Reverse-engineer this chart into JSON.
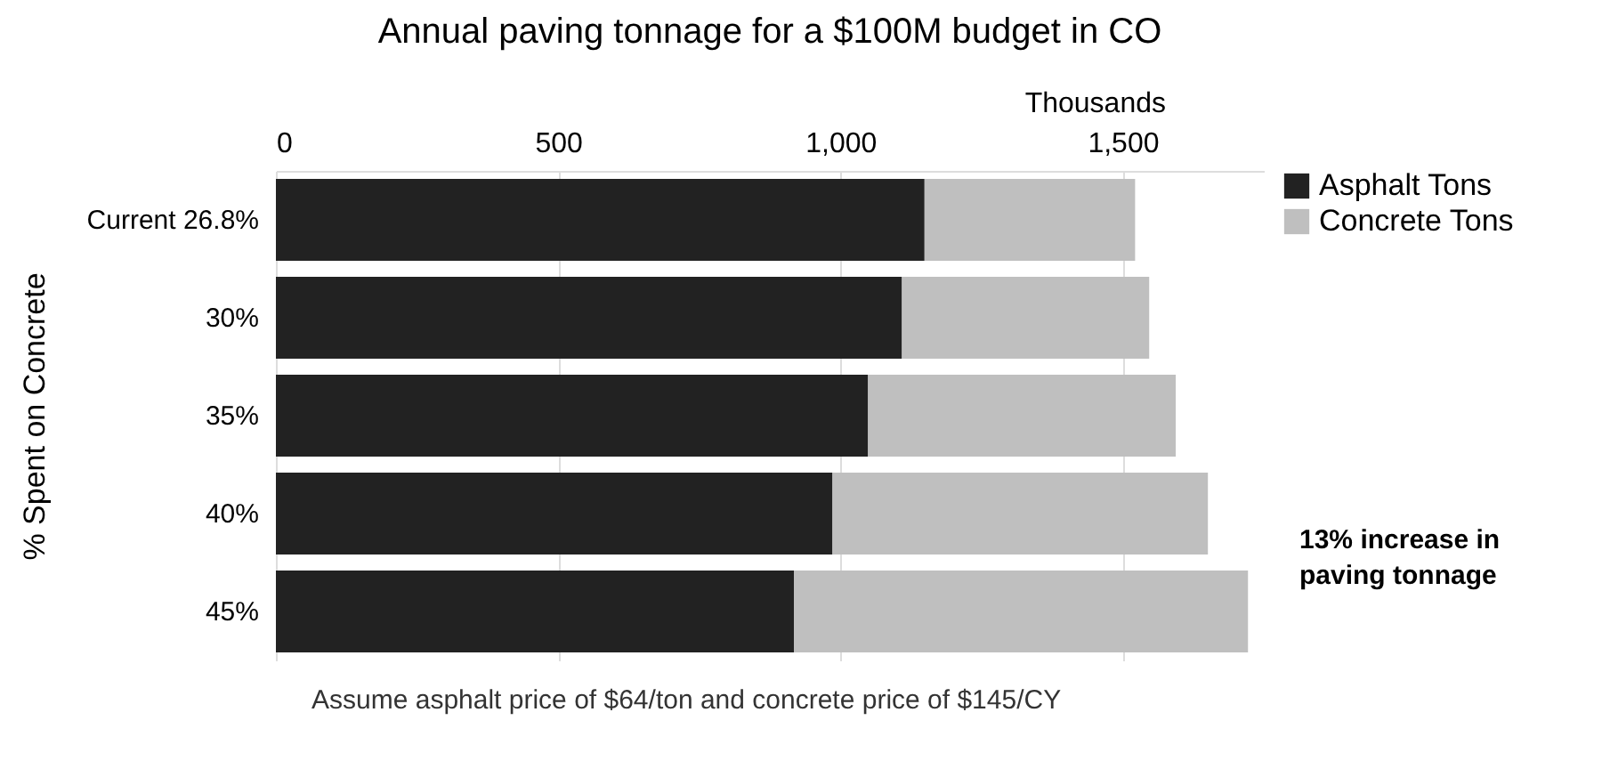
{
  "chart_data": {
    "type": "bar",
    "orientation": "horizontal",
    "stacked": true,
    "title": "Annual paving tonnage for a $100M budget in CO",
    "xlabel": "Thousands",
    "ylabel": "% Spent on Concrete",
    "categories": [
      "Current 26.8%",
      "30%",
      "35%",
      "40%",
      "45%"
    ],
    "series": [
      {
        "name": "Asphalt Tons",
        "color": "#222222",
        "values": [
          1149,
          1109,
          1049,
          986,
          918
        ]
      },
      {
        "name": "Concrete Tons",
        "color": "#bfbfbf",
        "values": [
          373,
          438,
          545,
          665,
          804
        ]
      }
    ],
    "xlim": [
      0,
      1750
    ],
    "xticks": [
      0,
      500,
      {
        "value": 1000,
        "label": "1,000"
      },
      {
        "value": 1500,
        "label": "1,500"
      }
    ],
    "grid": "x",
    "legend": "right",
    "annotations": [
      "13% increase in paving tonnage",
      "Assume asphalt price of $64/ton and concrete price of $145/CY"
    ]
  }
}
